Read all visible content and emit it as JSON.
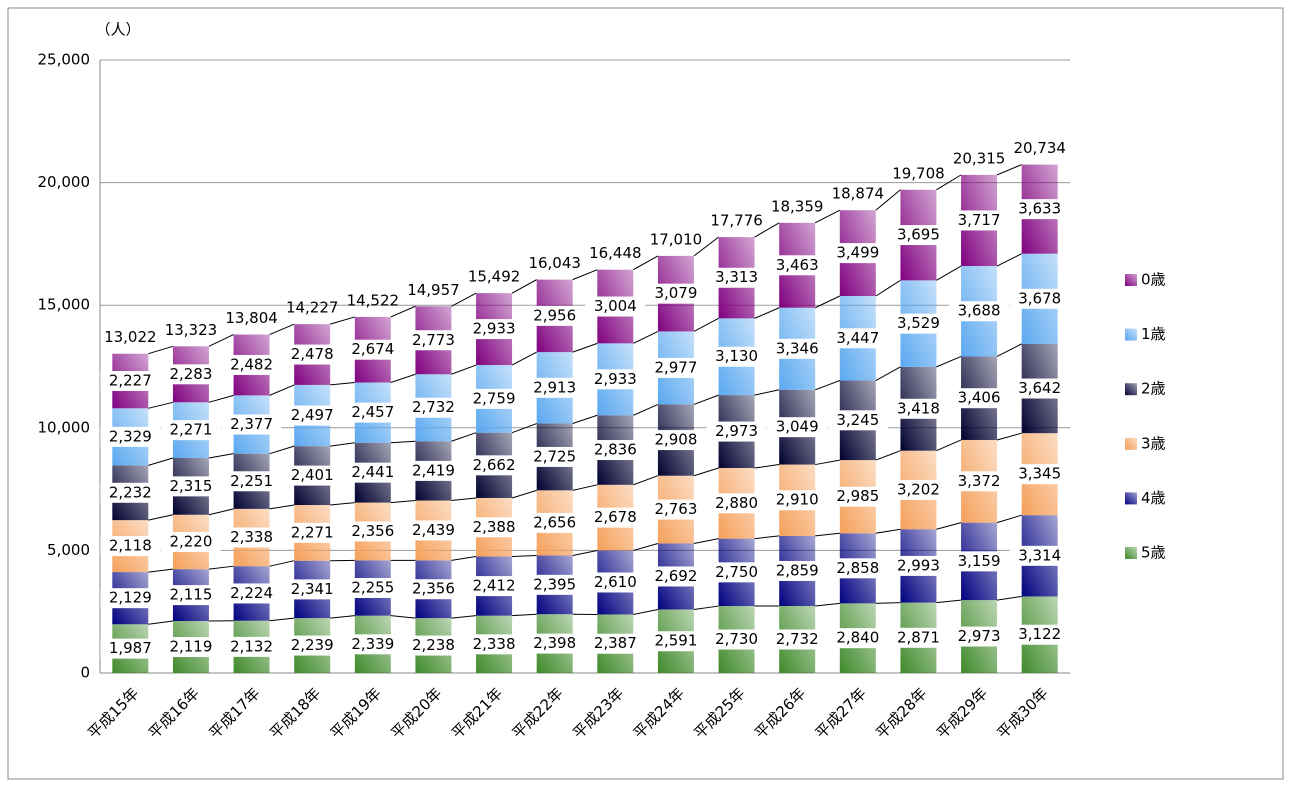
{
  "chart_data": {
    "type": "bar",
    "stacked": true,
    "y_label": "（人）",
    "categories": [
      "平成15年",
      "平成16年",
      "平成17年",
      "平成18年",
      "平成19年",
      "平成20年",
      "平成21年",
      "平成22年",
      "平成23年",
      "平成24年",
      "平成25年",
      "平成26年",
      "平成27年",
      "平成28年",
      "平成29年",
      "平成30年"
    ],
    "series": [
      {
        "name": "5歳",
        "color": "#3f8a2a",
        "values": [
          1987,
          2119,
          2132,
          2239,
          2339,
          2238,
          2338,
          2398,
          2387,
          2591,
          2730,
          2732,
          2840,
          2871,
          2973,
          3122
        ],
        "value_labels": [
          "1,987",
          "2,119",
          "2,132",
          "2,239",
          "2,339",
          "2,238",
          "2,338",
          "2,398",
          "2,387",
          "2,591",
          "2,730",
          "2,732",
          "2,840",
          "2,871",
          "2,973",
          "3,122"
        ]
      },
      {
        "name": "4歳",
        "color": "#000080",
        "values": [
          2129,
          2115,
          2224,
          2341,
          2255,
          2356,
          2412,
          2395,
          2610,
          2692,
          2750,
          2859,
          2858,
          2993,
          3159,
          3314
        ],
        "value_labels": [
          "2,129",
          "2,115",
          "2,224",
          "2,341",
          "2,255",
          "2,356",
          "2,412",
          "2,395",
          "2,610",
          "2,692",
          "2,750",
          "2,859",
          "2,858",
          "2,993",
          "3,159",
          "3,314"
        ]
      },
      {
        "name": "3歳",
        "color": "#f5a05a",
        "values": [
          2118,
          2220,
          2338,
          2271,
          2356,
          2439,
          2388,
          2656,
          2678,
          2763,
          2880,
          2910,
          2985,
          3202,
          3372,
          3345
        ],
        "value_labels": [
          "2,118",
          "2,220",
          "2,338",
          "2,271",
          "2,356",
          "2,439",
          "2,388",
          "2,656",
          "2,678",
          "2,763",
          "2,880",
          "2,910",
          "2,985",
          "3,202",
          "3,372",
          "3,345"
        ]
      },
      {
        "name": "2歳",
        "color": "#000030",
        "values": [
          2232,
          2315,
          2251,
          2401,
          2441,
          2419,
          2662,
          2725,
          2836,
          2908,
          2973,
          3049,
          3245,
          3418,
          3406,
          3642
        ],
        "value_labels": [
          "2,232",
          "2,315",
          "2,251",
          "2,401",
          "2,441",
          "2,419",
          "2,662",
          "2,725",
          "2,836",
          "2,908",
          "2,973",
          "3,049",
          "3,245",
          "3,418",
          "3,406",
          "3,642"
        ]
      },
      {
        "name": "1歳",
        "color": "#5aa8f0",
        "values": [
          2329,
          2271,
          2377,
          2497,
          2457,
          2732,
          2759,
          2913,
          2933,
          2977,
          3130,
          3346,
          3447,
          3529,
          3688,
          3678
        ],
        "value_labels": [
          "2,329",
          "2,271",
          "2,377",
          "2,497",
          "2,457",
          "2,732",
          "2,759",
          "2,913",
          "2,933",
          "2,977",
          "3,130",
          "3,346",
          "3,447",
          "3,529",
          "3,688",
          "3,678"
        ]
      },
      {
        "name": "0歳",
        "color": "#800080",
        "values": [
          2227,
          2283,
          2482,
          2478,
          2674,
          2773,
          2933,
          2956,
          3004,
          3079,
          3313,
          3463,
          3499,
          3695,
          3717,
          3633
        ],
        "value_labels": [
          "2,227",
          "2,283",
          "2,482",
          "2,478",
          "2,674",
          "2,773",
          "2,933",
          "2,956",
          "3,004",
          "3,079",
          "3,313",
          "3,463",
          "3,499",
          "3,695",
          "3,717",
          "3,633"
        ]
      }
    ],
    "totals": {
      "values": [
        13022,
        13323,
        13804,
        14227,
        14522,
        14957,
        15492,
        16043,
        16448,
        17010,
        17776,
        18359,
        18874,
        19708,
        20315,
        20734
      ],
      "value_labels": [
        "13,022",
        "13,323",
        "13,804",
        "14,227",
        "14,522",
        "14,957",
        "15,492",
        "16,043",
        "16,448",
        "17,010",
        "17,776",
        "18,359",
        "18,874",
        "19,708",
        "20,315",
        "20,734"
      ]
    },
    "ylim": [
      0,
      25000
    ],
    "yticks": [
      0,
      {
        "value": 5000,
        "label": "5,000"
      },
      {
        "value": 10000,
        "label": "10,000"
      },
      {
        "value": 15000,
        "label": "15,000"
      },
      {
        "value": 20000,
        "label": "20,000"
      },
      {
        "value": 25000,
        "label": "25,000"
      }
    ],
    "grid": true,
    "legend": "right"
  }
}
